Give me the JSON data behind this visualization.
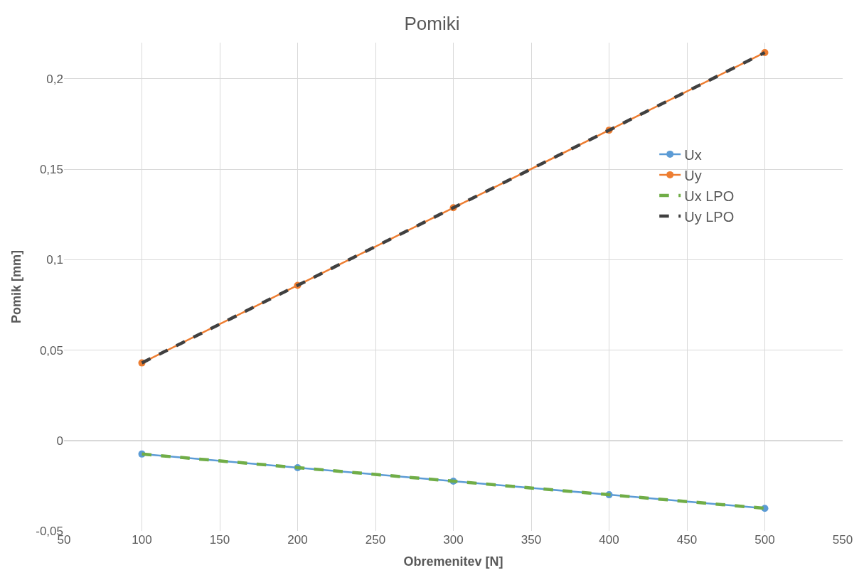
{
  "chart_data": {
    "type": "line",
    "title": "Pomiki",
    "xlabel": "Obremenitev [N]",
    "ylabel": "Pomik [mm]",
    "x": [
      100,
      200,
      300,
      400,
      500
    ],
    "series": [
      {
        "name": "Ux",
        "color": "#5b9bd5",
        "marker": "circle",
        "line_style": "solid",
        "values": [
          -0.0075,
          -0.015,
          -0.0225,
          -0.03,
          -0.0375
        ]
      },
      {
        "name": "Uy",
        "color": "#ed7d31",
        "marker": "circle",
        "line_style": "solid",
        "values": [
          0.0429,
          0.0858,
          0.1287,
          0.1716,
          0.2145
        ]
      },
      {
        "name": "Ux LPO",
        "color": "#70ad47",
        "marker": "none",
        "line_style": "dashed",
        "values": [
          -0.0075,
          -0.015,
          -0.0225,
          -0.03,
          -0.0375
        ]
      },
      {
        "name": "Uy LPO",
        "color": "#404040",
        "marker": "none",
        "line_style": "dashed",
        "values": [
          0.0429,
          0.0858,
          0.1287,
          0.1716,
          0.2145
        ]
      }
    ],
    "xlim": [
      50,
      550
    ],
    "xticks": [
      50,
      100,
      150,
      200,
      250,
      300,
      350,
      400,
      450,
      500,
      550
    ],
    "ylim": [
      -0.05,
      0.22
    ],
    "yticks": [
      {
        "value": -0.05,
        "label": "-0,05"
      },
      0,
      {
        "value": 0.05,
        "label": "0,05"
      },
      {
        "value": 0.1,
        "label": "0,1"
      },
      {
        "value": 0.15,
        "label": "0,15"
      },
      {
        "value": 0.2,
        "label": "0,2"
      }
    ],
    "grid": true,
    "legend": "right"
  }
}
